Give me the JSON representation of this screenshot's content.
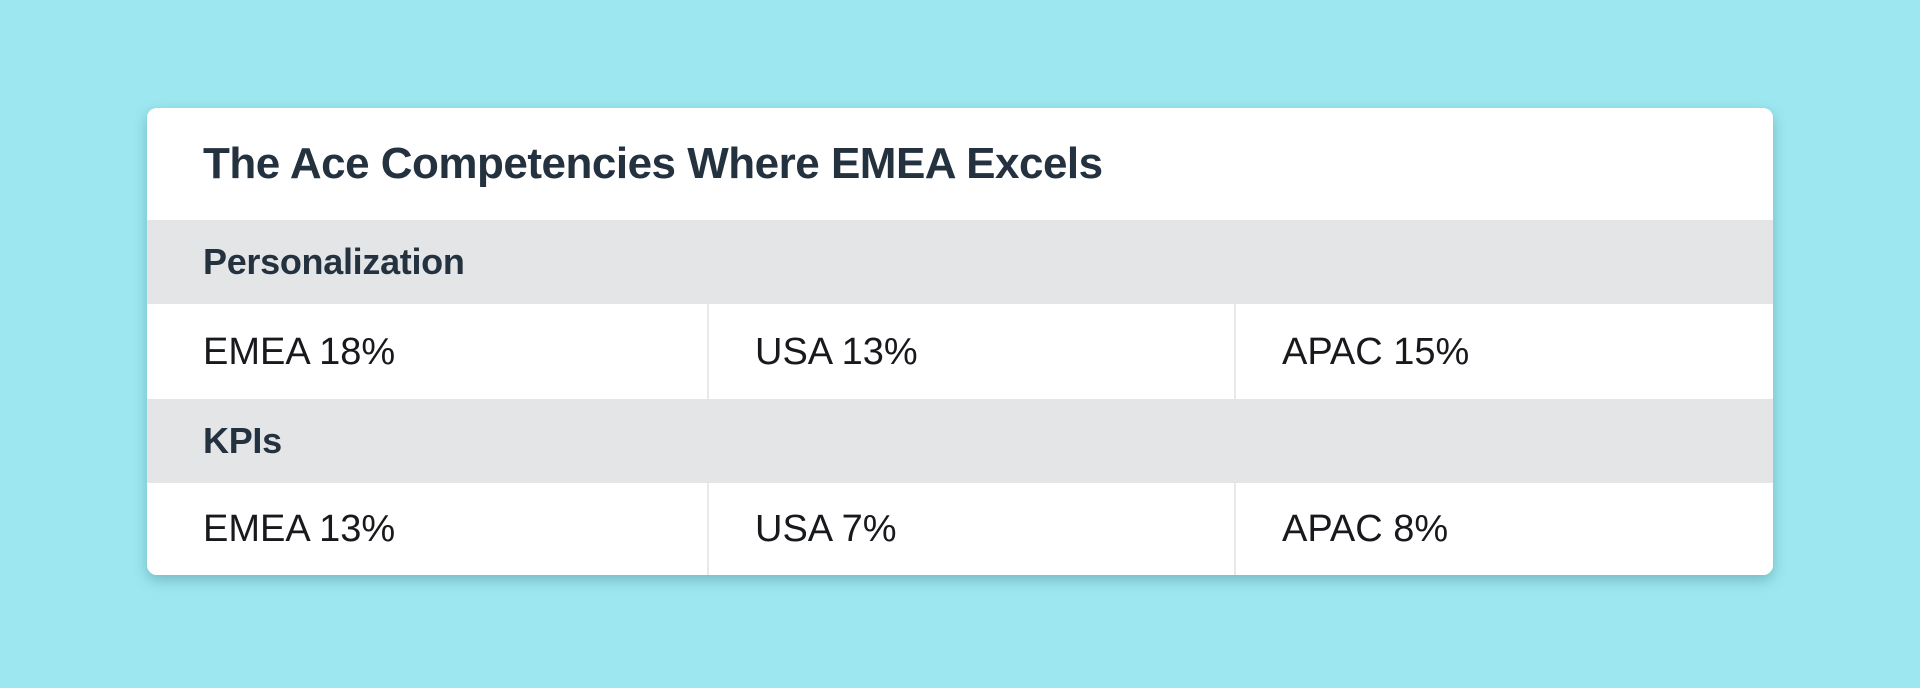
{
  "page": {
    "background_color": "#9DE8F0"
  },
  "card": {
    "title": "The Ace Competencies Where EMEA Excels",
    "colors": {
      "card_background": "#FFFFFF",
      "section_header_background": "#E4E5E7",
      "heading_text": "#243240",
      "cell_text": "#17191C",
      "divider": "#E8E9EB"
    },
    "sections": [
      {
        "header": "Personalization",
        "cells": [
          "EMEA 18%",
          "USA 13%",
          "APAC 15%"
        ]
      },
      {
        "header": "KPIs",
        "cells": [
          "EMEA 13%",
          "USA 7%",
          "APAC 8%"
        ]
      }
    ]
  },
  "chart_data": {
    "type": "table",
    "title": "The Ace Competencies Where EMEA Excels",
    "row_groups": [
      "Personalization",
      "KPIs"
    ],
    "columns": [
      "EMEA",
      "USA",
      "APAC"
    ],
    "series": [
      {
        "name": "Personalization",
        "values": [
          18,
          13,
          15
        ]
      },
      {
        "name": "KPIs",
        "values": [
          13,
          7,
          8
        ]
      }
    ],
    "unit": "%"
  }
}
